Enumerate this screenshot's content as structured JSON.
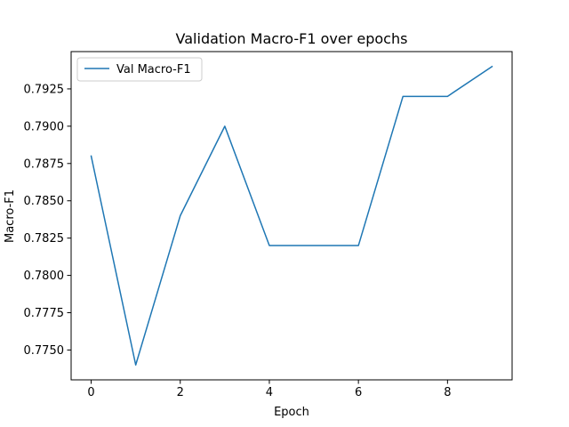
{
  "chart_data": {
    "type": "line",
    "title": "Validation Macro-F1 over epochs",
    "xlabel": "Epoch",
    "ylabel": "Macro-F1",
    "x": [
      0,
      1,
      2,
      3,
      4,
      5,
      6,
      7,
      8,
      9
    ],
    "series": [
      {
        "name": "Val Macro-F1",
        "color": "#1f77b4",
        "values": [
          0.788,
          0.774,
          0.784,
          0.79,
          0.782,
          0.782,
          0.782,
          0.792,
          0.792,
          0.794
        ]
      }
    ],
    "xlim": [
      -0.45,
      9.45
    ],
    "ylim": [
      0.773,
      0.795
    ],
    "xticks": [
      0,
      2,
      4,
      6,
      8
    ],
    "xtick_labels": [
      "0",
      "2",
      "4",
      "6",
      "8"
    ],
    "yticks": [
      0.775,
      0.7775,
      0.78,
      0.7825,
      0.785,
      0.7875,
      0.79,
      0.7925
    ],
    "ytick_labels": [
      "0.7750",
      "0.7775",
      "0.7800",
      "0.7825",
      "0.7850",
      "0.7875",
      "0.7900",
      "0.7925"
    ],
    "grid": false,
    "legend_position": "upper-left"
  }
}
